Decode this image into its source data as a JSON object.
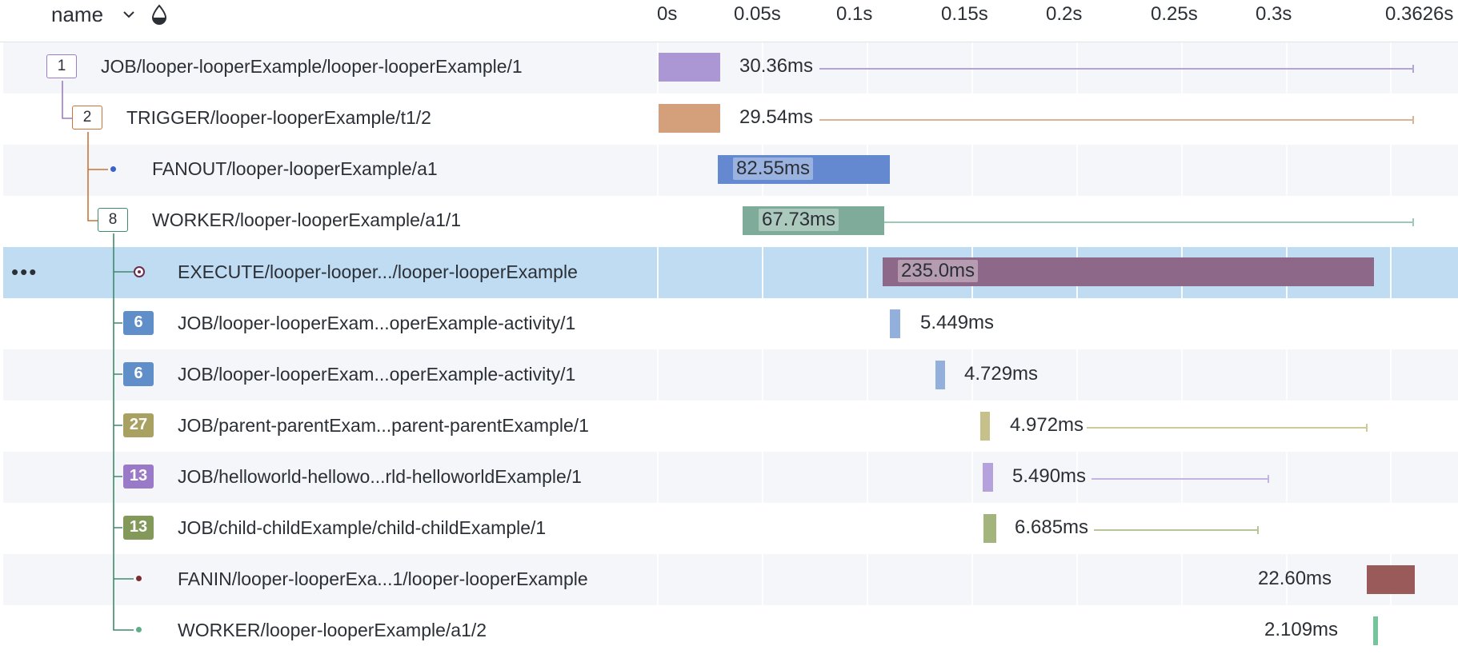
{
  "header": {
    "name_label": "name",
    "sort_icon": "chevron-down-icon",
    "filter_icon": "droplet-icon",
    "ticks": [
      "0s",
      "0.05s",
      "0.1s",
      "0.15s",
      "0.2s",
      "0.25s",
      "0.3s",
      "0.3626s"
    ]
  },
  "rows": [
    {
      "label": "JOB/looper-looperExample/looper-looperExample/1",
      "badge": "1",
      "badge_style": "outline",
      "color": "#9b7cc9",
      "duration": "30.36ms"
    },
    {
      "label": "TRIGGER/looper-looperExample/t1/2",
      "badge": "2",
      "badge_style": "outline",
      "color": "#c8743b",
      "duration": "29.54ms"
    },
    {
      "label": "FANOUT/looper-looperExample/a1",
      "badge": "",
      "badge_style": "dot",
      "color": "#3a63c8",
      "duration": "82.55ms"
    },
    {
      "label": "WORKER/looper-looperExample/a1/1",
      "badge": "8",
      "badge_style": "outline",
      "color": "#3f8a6c",
      "duration": "67.73ms"
    },
    {
      "label": "EXECUTE/looper-looper.../looper-looperExample",
      "badge": "",
      "badge_style": "ring",
      "color": "#8e6888",
      "duration": "235.0ms",
      "more": "•••"
    },
    {
      "label": "JOB/looper-looperExam...operExample-activity/1",
      "badge": "6",
      "badge_style": "solid",
      "color": "#5f8ec9",
      "duration": "5.449ms"
    },
    {
      "label": "JOB/looper-looperExam...operExample-activity/1",
      "badge": "6",
      "badge_style": "solid",
      "color": "#5f8ec9",
      "duration": "4.729ms"
    },
    {
      "label": "JOB/parent-parentExam...parent-parentExample/1",
      "badge": "27",
      "badge_style": "solid",
      "color": "#a8a162",
      "duration": "4.972ms"
    },
    {
      "label": "JOB/helloworld-hellowo...rld-helloworldExample/1",
      "badge": "13",
      "badge_style": "solid",
      "color": "#9a79c8",
      "duration": "5.490ms"
    },
    {
      "label": "JOB/child-childExample/child-childExample/1",
      "badge": "13",
      "badge_style": "solid",
      "color": "#83995a",
      "duration": "6.685ms"
    },
    {
      "label": "FANIN/looper-looperExa...1/looper-looperExample",
      "badge": "",
      "badge_style": "dot",
      "color": "#7a2e2e",
      "duration": "22.60ms"
    },
    {
      "label": "WORKER/looper-looperExample/a1/2",
      "badge": "",
      "badge_style": "dot",
      "color": "#5fae87",
      "duration": "2.109ms"
    }
  ]
}
